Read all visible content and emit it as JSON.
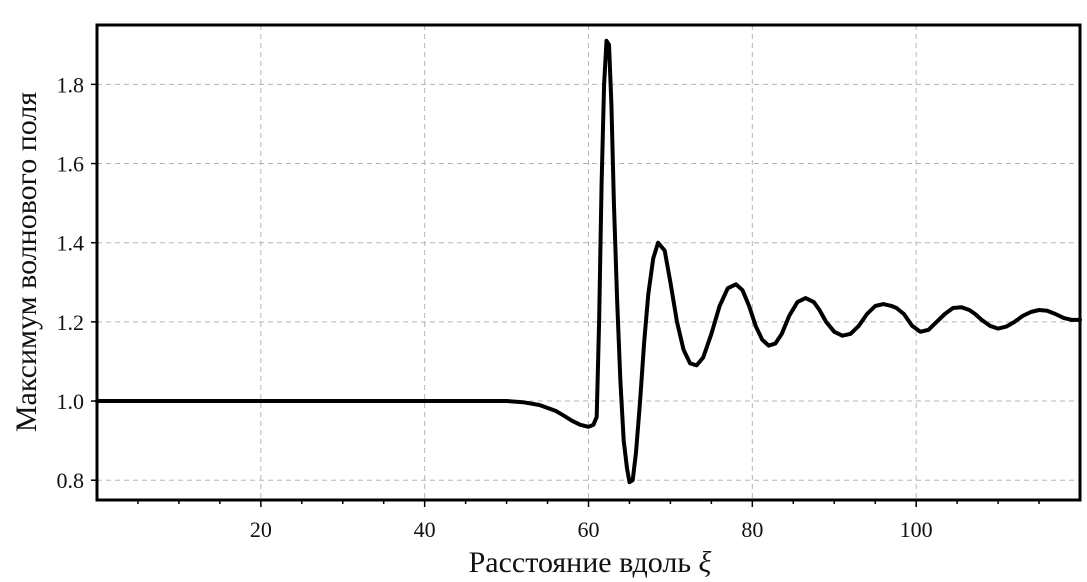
{
  "chart_data": {
    "type": "line",
    "title": "",
    "xlabel": "Расстояние вдоль",
    "xlabel_symbol": "ξ",
    "ylabel": "Максимум волнового поля",
    "xlim": [
      0,
      120
    ],
    "ylim": [
      0.75,
      1.95
    ],
    "x_ticks": [
      20,
      40,
      60,
      80,
      100
    ],
    "y_ticks": [
      0.8,
      1.0,
      1.2,
      1.4,
      1.6,
      1.8
    ],
    "y_tick_labels": [
      "0.8",
      "1.0",
      "1.2",
      "1.4",
      "1.6",
      "1.8"
    ],
    "grid": true,
    "series": [
      {
        "x": [
          0,
          10,
          20,
          30,
          40,
          50,
          52,
          54,
          56,
          57,
          58,
          59,
          60,
          60.6,
          61,
          61.3,
          61.6,
          61.9,
          62.2,
          62.5,
          62.8,
          63.1,
          63.5,
          63.9,
          64.3,
          64.7,
          65,
          65.4,
          65.8,
          66.3,
          66.8,
          67.3,
          67.9,
          68.5,
          69.3,
          70,
          70.8,
          71.6,
          72.4,
          73.2,
          74,
          75,
          76,
          77,
          78,
          78.8,
          79.6,
          80.4,
          81.2,
          82,
          82.8,
          83.6,
          84.5,
          85.5,
          86.5,
          87.5,
          88.2,
          89,
          90,
          91,
          92,
          93,
          94,
          95,
          96,
          97,
          97.6,
          98.5,
          99.5,
          100.5,
          101.5,
          102.5,
          103.5,
          104.5,
          105.5,
          106.5,
          107.2,
          108,
          109,
          110,
          111,
          112,
          113,
          114,
          115,
          116,
          117,
          118,
          119,
          120
        ],
        "y": [
          1.0,
          1.0,
          1.0,
          1.0,
          1.0,
          1.0,
          0.997,
          0.99,
          0.975,
          0.963,
          0.95,
          0.94,
          0.935,
          0.94,
          0.96,
          1.2,
          1.55,
          1.8,
          1.91,
          1.9,
          1.75,
          1.5,
          1.25,
          1.05,
          0.9,
          0.83,
          0.795,
          0.8,
          0.87,
          1.0,
          1.15,
          1.27,
          1.36,
          1.4,
          1.38,
          1.3,
          1.2,
          1.13,
          1.095,
          1.09,
          1.11,
          1.17,
          1.24,
          1.285,
          1.295,
          1.28,
          1.24,
          1.19,
          1.155,
          1.14,
          1.145,
          1.17,
          1.215,
          1.25,
          1.26,
          1.25,
          1.23,
          1.2,
          1.175,
          1.165,
          1.17,
          1.19,
          1.22,
          1.24,
          1.245,
          1.24,
          1.235,
          1.22,
          1.19,
          1.175,
          1.18,
          1.2,
          1.22,
          1.235,
          1.237,
          1.23,
          1.22,
          1.205,
          1.19,
          1.183,
          1.188,
          1.2,
          1.215,
          1.225,
          1.23,
          1.228,
          1.22,
          1.21,
          1.205,
          1.205
        ]
      }
    ]
  }
}
